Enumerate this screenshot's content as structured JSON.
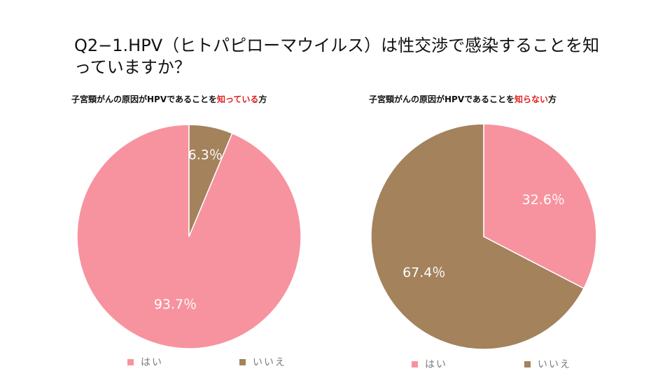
{
  "question": "Q2−1.HPV（ヒトパピローマウイルス）は性交渉で感染することを知っていますか？",
  "colors": {
    "hai": "#f7939f",
    "iie": "#a3825c",
    "highlight": "#e02020"
  },
  "charts": [
    {
      "subtitle_pre": "子宮頸がんの原因がHPVであることを",
      "subtitle_hl": "知っている",
      "subtitle_post": "方"
    },
    {
      "subtitle_pre": "子宮頸がんの原因がHPVであることを",
      "subtitle_hl": "知らない",
      "subtitle_post": "方"
    }
  ],
  "chart_data": [
    {
      "type": "pie",
      "title": "子宮頸がんの原因がHPVであることを知っている方",
      "categories": [
        "はい",
        "いいえ"
      ],
      "values": [
        93.7,
        6.3
      ],
      "data_labels": [
        "93.7％",
        "6.3％"
      ],
      "legend": "bottom"
    },
    {
      "type": "pie",
      "title": "子宮頸がんの原因がHPVであることを知らない方",
      "categories": [
        "はい",
        "いいえ"
      ],
      "values": [
        32.6,
        67.4
      ],
      "data_labels": [
        "32.6％",
        "67.4％"
      ],
      "legend": "bottom"
    }
  ]
}
